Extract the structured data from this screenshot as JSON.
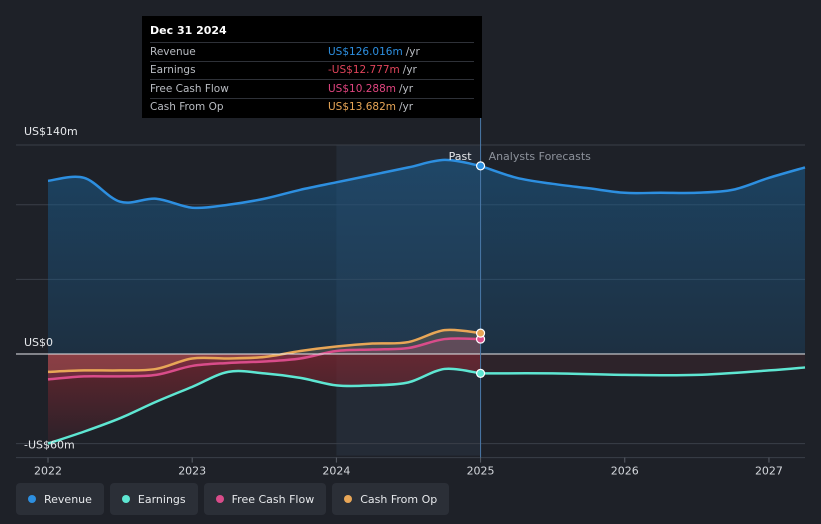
{
  "tooltip": {
    "date": "Dec 31 2024",
    "rows": [
      {
        "label": "Revenue",
        "value": "US$126.016m",
        "unit": "/yr",
        "color": "#2d8fe0"
      },
      {
        "label": "Earnings",
        "value": "-US$12.777m",
        "unit": "/yr",
        "color": "#e0445a"
      },
      {
        "label": "Free Cash Flow",
        "value": "US$10.288m",
        "unit": "/yr",
        "color": "#e0457f"
      },
      {
        "label": "Cash From Op",
        "value": "US$13.682m",
        "unit": "/yr",
        "color": "#e8a657"
      }
    ]
  },
  "legend": [
    {
      "label": "Revenue",
      "color": "#2d8fe0"
    },
    {
      "label": "Earnings",
      "color": "#5ee6d2"
    },
    {
      "label": "Free Cash Flow",
      "color": "#d94c8a"
    },
    {
      "label": "Cash From Op",
      "color": "#e8a657"
    }
  ],
  "chart_data": {
    "type": "line",
    "y_labels": {
      "top": "US$140m",
      "zero": "US$0",
      "bottom": "-US$60m"
    },
    "ylim": [
      -60,
      140
    ],
    "xlim": [
      2022,
      2027.25
    ],
    "x_ticks": [
      "2022",
      "2023",
      "2024",
      "2025",
      "2026",
      "2027"
    ],
    "divider_x": 2025,
    "past_label": "Past",
    "forecast_label": "Analysts Forecasts",
    "series": [
      {
        "name": "Revenue",
        "color": "#2d8fe0",
        "points": [
          [
            2022,
            116
          ],
          [
            2022.25,
            118
          ],
          [
            2022.5,
            102
          ],
          [
            2022.75,
            104
          ],
          [
            2023,
            98
          ],
          [
            2023.25,
            100
          ],
          [
            2023.5,
            104
          ],
          [
            2023.75,
            110
          ],
          [
            2024,
            115
          ],
          [
            2024.25,
            120
          ],
          [
            2024.5,
            125
          ],
          [
            2024.75,
            130
          ],
          [
            2025,
            126
          ]
        ],
        "forecast": [
          [
            2025,
            126
          ],
          [
            2025.25,
            118
          ],
          [
            2025.5,
            114
          ],
          [
            2025.75,
            111
          ],
          [
            2026,
            108
          ],
          [
            2026.25,
            108
          ],
          [
            2026.5,
            108
          ],
          [
            2026.75,
            110
          ],
          [
            2027,
            118
          ],
          [
            2027.25,
            125
          ]
        ]
      },
      {
        "name": "Earnings",
        "color": "#5ee6d2",
        "points": [
          [
            2022,
            -60
          ],
          [
            2022.25,
            -52
          ],
          [
            2022.5,
            -43
          ],
          [
            2022.75,
            -32
          ],
          [
            2023,
            -22
          ],
          [
            2023.25,
            -12
          ],
          [
            2023.5,
            -13
          ],
          [
            2023.75,
            -16
          ],
          [
            2024,
            -21
          ],
          [
            2024.25,
            -21
          ],
          [
            2024.5,
            -19
          ],
          [
            2024.75,
            -10
          ],
          [
            2025,
            -13
          ]
        ],
        "forecast": [
          [
            2025,
            -13
          ],
          [
            2025.5,
            -13
          ],
          [
            2026,
            -14
          ],
          [
            2026.5,
            -14
          ],
          [
            2027,
            -11
          ],
          [
            2027.25,
            -9
          ]
        ]
      },
      {
        "name": "Free Cash Flow",
        "color": "#d94c8a",
        "points": [
          [
            2022,
            -17
          ],
          [
            2022.25,
            -15
          ],
          [
            2022.5,
            -15
          ],
          [
            2022.75,
            -14
          ],
          [
            2023,
            -8
          ],
          [
            2023.25,
            -6
          ],
          [
            2023.5,
            -5
          ],
          [
            2023.75,
            -3
          ],
          [
            2024,
            2
          ],
          [
            2024.25,
            3
          ],
          [
            2024.5,
            4
          ],
          [
            2024.75,
            10
          ],
          [
            2025,
            10
          ]
        ]
      },
      {
        "name": "Cash From Op",
        "color": "#e8a657",
        "points": [
          [
            2022,
            -12
          ],
          [
            2022.25,
            -11
          ],
          [
            2022.5,
            -11
          ],
          [
            2022.75,
            -10
          ],
          [
            2023,
            -3
          ],
          [
            2023.25,
            -3
          ],
          [
            2023.5,
            -2
          ],
          [
            2023.75,
            2
          ],
          [
            2024,
            5
          ],
          [
            2024.25,
            7
          ],
          [
            2024.5,
            8
          ],
          [
            2024.75,
            16
          ],
          [
            2025,
            14
          ]
        ]
      }
    ]
  }
}
